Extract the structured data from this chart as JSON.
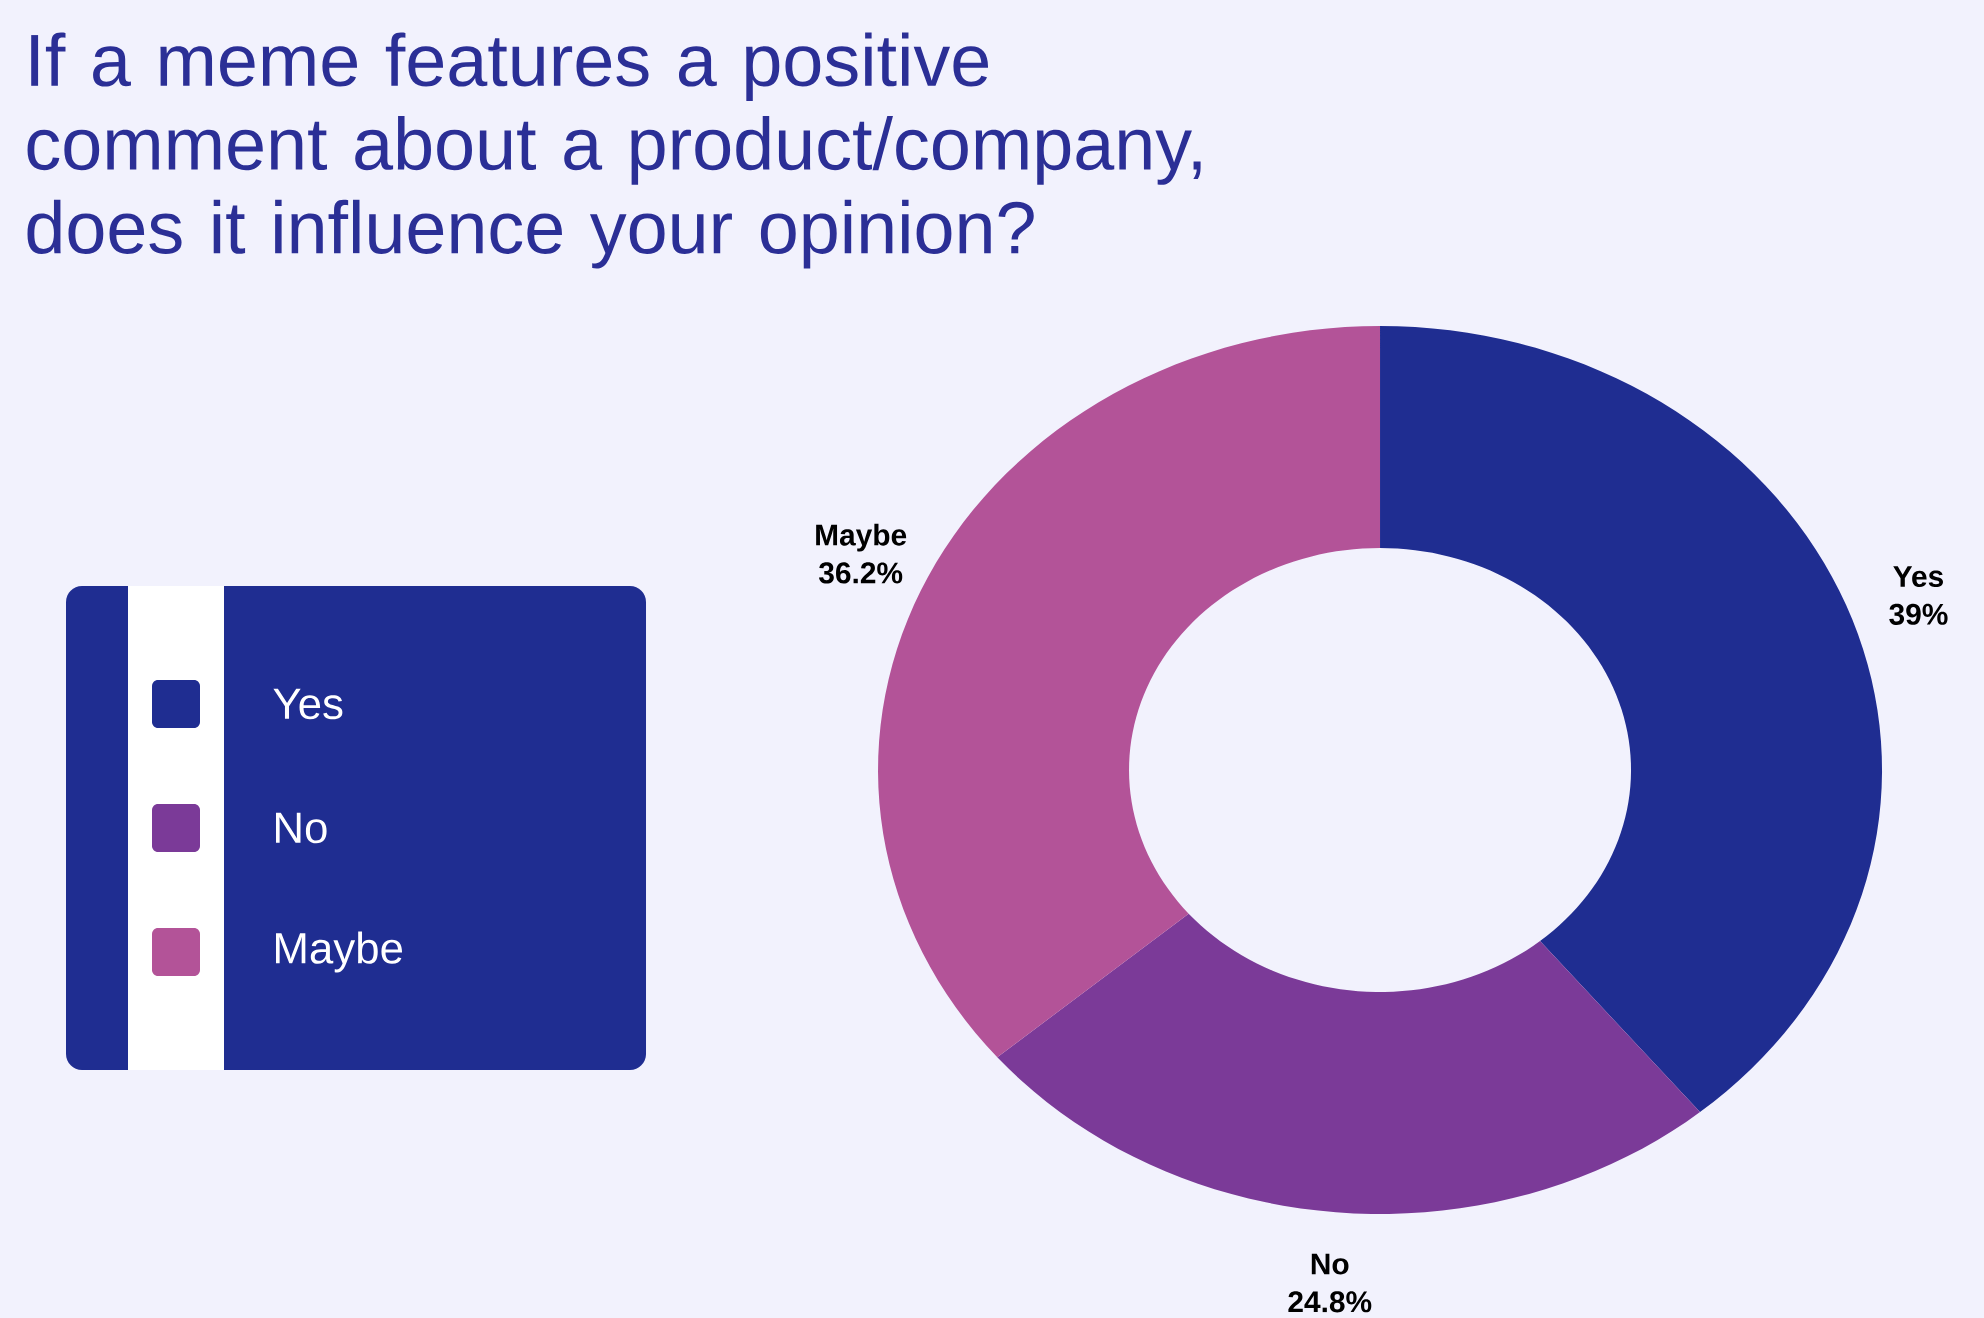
{
  "chart_data": {
    "type": "donut",
    "title": "If a meme features a positive comment about a product/company, does it influence your opinion?",
    "categories": [
      "Yes",
      "No",
      "Maybe"
    ],
    "values": [
      39,
      24.8,
      36.2
    ],
    "value_labels": [
      "39%",
      "24.8%",
      "36.2%"
    ],
    "colors": [
      "#1f2d91",
      "#7b3a98",
      "#b35398"
    ],
    "legend": "left"
  }
}
